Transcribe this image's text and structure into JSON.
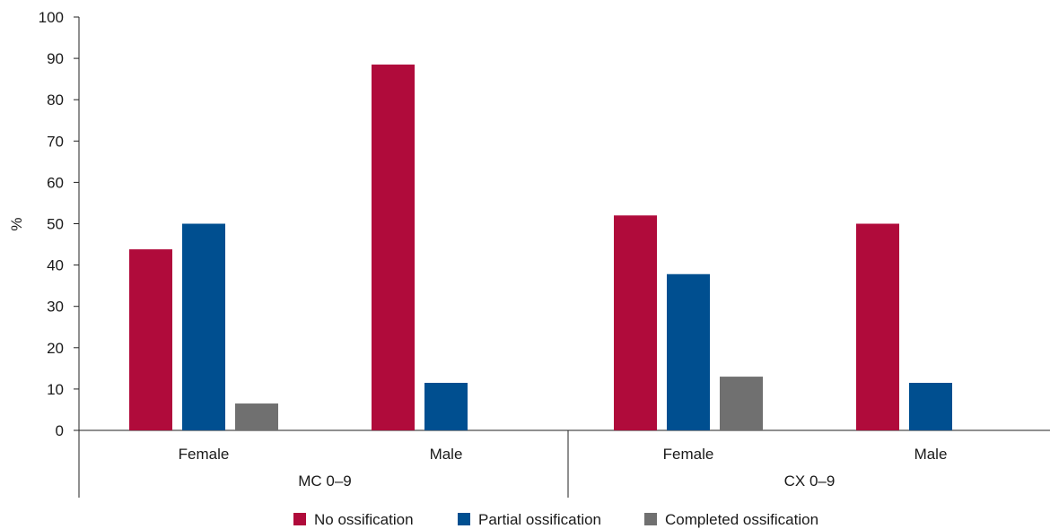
{
  "chart_data": {
    "type": "bar",
    "ylabel": "%",
    "ylim": [
      0,
      100
    ],
    "yticks": [
      0,
      10,
      20,
      30,
      40,
      50,
      60,
      70,
      80,
      90,
      100
    ],
    "groups": [
      {
        "label": "MC 0–9",
        "categories": [
          {
            "label": "Female",
            "values": [
              43.8,
              50.0,
              6.5
            ]
          },
          {
            "label": "Male",
            "values": [
              88.5,
              11.5,
              0
            ]
          }
        ]
      },
      {
        "label": "CX 0–9",
        "categories": [
          {
            "label": "Female",
            "values": [
              52.0,
              37.8,
              13.0
            ]
          },
          {
            "label": "Male",
            "values": [
              50.0,
              11.5,
              0
            ]
          }
        ]
      }
    ],
    "series": [
      {
        "name": "No ossification",
        "color": "#b00b3b"
      },
      {
        "name": "Partial ossification",
        "color": "#004f90"
      },
      {
        "name": "Completed ossification",
        "color": "#707070"
      }
    ],
    "grid": false,
    "legend_position": "bottom"
  }
}
